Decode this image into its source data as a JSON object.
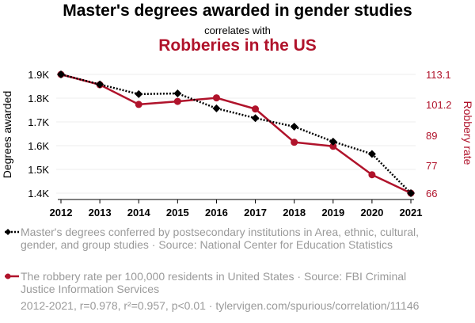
{
  "title": "Master's degrees awarded in gender studies",
  "subtitle": "correlates with",
  "title2": "Robberies in the US",
  "footer": "2012-2021, r=0.978, r²=0.957, p<0.01 · tylervigen.com/spurious/correlation/11146",
  "colors": {
    "series1": "#000000",
    "series2": "#b0132b",
    "muted": "#9a9a9a"
  },
  "chart_data": {
    "type": "line",
    "x": [
      "2012",
      "2013",
      "2014",
      "2015",
      "2016",
      "2017",
      "2018",
      "2019",
      "2020",
      "2021"
    ],
    "ylabel": "Degrees awarded",
    "y2label": "Robbery rate",
    "ylim": [
      1400,
      1900
    ],
    "y2lim": [
      66,
      113.1
    ],
    "yticks": [
      {
        "value": 1400,
        "label": "1.4K"
      },
      {
        "value": 1500,
        "label": "1.5K"
      },
      {
        "value": 1600,
        "label": "1.6K"
      },
      {
        "value": 1700,
        "label": "1.7K"
      },
      {
        "value": 1800,
        "label": "1.8K"
      },
      {
        "value": 1900,
        "label": "1.9K"
      }
    ],
    "y2ticks": [
      {
        "value": 66,
        "label": "66"
      },
      {
        "value": 77,
        "label": "77"
      },
      {
        "value": 89,
        "label": "89"
      },
      {
        "value": 101.2,
        "label": "101.2"
      },
      {
        "value": 113.1,
        "label": "113.1"
      }
    ],
    "grid": true,
    "series": [
      {
        "name": "Master's degrees conferred by postsecondary institutions in Area, ethnic, cultural, gender, and group studies · Source: National Center for Education Statistics",
        "axis": "left",
        "color": "#000000",
        "style": "dotted",
        "marker": "diamond",
        "values": [
          1900,
          1858,
          1817,
          1820,
          1757,
          1716,
          1680,
          1617,
          1565,
          1400
        ]
      },
      {
        "name": "The robbery rate per 100,000 residents in United States · Source: FBI Criminal Justice Information Services",
        "axis": "right",
        "color": "#b0132b",
        "style": "solid",
        "marker": "circle",
        "values": [
          113.1,
          109.0,
          101.2,
          102.4,
          103.8,
          99.4,
          86.2,
          84.6,
          73.3,
          66.0
        ]
      }
    ]
  }
}
